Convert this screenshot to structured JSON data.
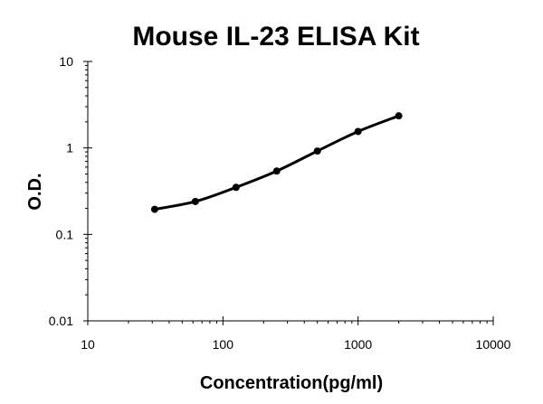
{
  "chart_data": {
    "type": "line",
    "title": "Mouse IL-23 ELISA Kit",
    "xlabel": "Concentration(pg/ml)",
    "ylabel": "O.D.",
    "xscale": "log",
    "yscale": "log",
    "xlim": [
      10,
      10000
    ],
    "ylim": [
      0.01,
      10
    ],
    "x_tick_labels": [
      "10",
      "100",
      "1000",
      "10000"
    ],
    "y_tick_labels": [
      "10",
      "1",
      "0.1",
      "0.01"
    ],
    "grid": false,
    "legend": "none",
    "series": [
      {
        "x": [
          31.25,
          62.5,
          125,
          250,
          500,
          1000,
          2000
        ],
        "y": [
          0.195,
          0.24,
          0.35,
          0.54,
          0.92,
          1.55,
          2.35
        ]
      }
    ],
    "colors": {
      "line": "#000000",
      "axis": "#000000"
    }
  }
}
